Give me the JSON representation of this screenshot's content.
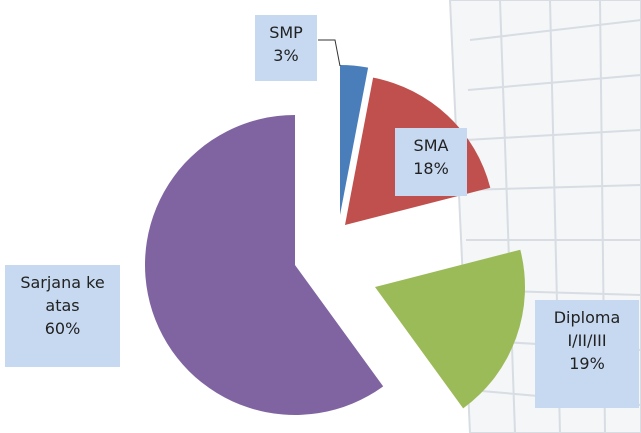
{
  "chart_data": {
    "type": "pie",
    "categories": [
      "SMP",
      "SMA",
      "Diploma I/II/III",
      "Sarjana ke atas"
    ],
    "values": [
      3,
      18,
      19,
      60
    ],
    "value_labels": [
      "3%",
      "18%",
      "19%",
      "60%"
    ],
    "colors": [
      "#4a7ebb",
      "#c0504d",
      "#9bbb59",
      "#8064a2"
    ]
  }
}
